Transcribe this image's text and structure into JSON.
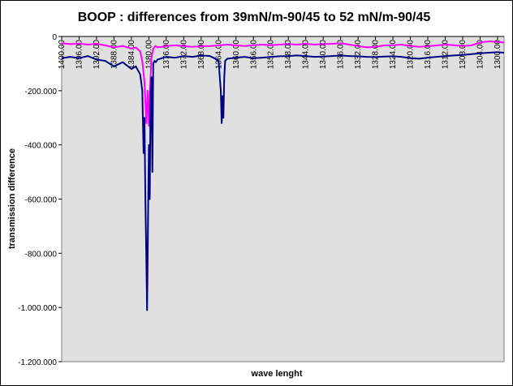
{
  "chart_data": {
    "type": "line",
    "title": "BOOP : differences from 39mN/m-90/45 to 52 mN/m-90/45",
    "xlabel": "wave lenght",
    "ylabel": "transmission difference",
    "ylim": [
      -1200,
      0
    ],
    "y_ticks": [
      {
        "value": 0,
        "label": "0"
      },
      {
        "value": -200,
        "label": "-200.000"
      },
      {
        "value": -400,
        "label": "-400.000"
      },
      {
        "value": -600,
        "label": "-600.000"
      },
      {
        "value": -800,
        "label": "-800.000"
      },
      {
        "value": -1000,
        "label": "-1.000.000"
      },
      {
        "value": -1200,
        "label": "-1.200.000"
      }
    ],
    "x_reversed": true,
    "xlim": [
      1400,
      1298.5
    ],
    "x_tick_labels": [
      "1400.00",
      "1396.00",
      "1392.00",
      "1388.00",
      "1384.00",
      "1380.00",
      "1376.00",
      "1372.00",
      "1368.00",
      "1364.00",
      "1360.00",
      "1356.00",
      "1352.00",
      "1348.00",
      "1344.00",
      "1340.00",
      "1336.00",
      "1332.00",
      "1328.00",
      "1324.00",
      "1320.00",
      "1316.00",
      "1312.00",
      "1308.00",
      "1304.00",
      "1300.00"
    ],
    "x_tick_values": [
      1400,
      1396,
      1392,
      1388,
      1384,
      1380,
      1376,
      1372,
      1368,
      1364,
      1360,
      1356,
      1352,
      1348,
      1344,
      1340,
      1336,
      1332,
      1328,
      1324,
      1320,
      1316,
      1312,
      1308,
      1304,
      1300
    ],
    "grid": false,
    "legend": "none",
    "plot_background": "#e0e0e0",
    "series": [
      {
        "color": "#ff00ff",
        "x": [
          1400,
          1398,
          1396,
          1394,
          1392,
          1390,
          1388,
          1386,
          1384,
          1383,
          1382,
          1381.5,
          1381,
          1380.6,
          1380.3,
          1380,
          1379.7,
          1379.4,
          1379,
          1378.5,
          1378,
          1377,
          1376,
          1374,
          1372,
          1370,
          1368,
          1366,
          1364,
          1362,
          1360,
          1358,
          1356,
          1354,
          1352,
          1350,
          1348,
          1346,
          1344,
          1342,
          1340,
          1338,
          1336,
          1334,
          1332,
          1330,
          1328,
          1326,
          1324,
          1322,
          1320,
          1318,
          1316,
          1314,
          1312,
          1310,
          1308,
          1306,
          1304,
          1302,
          1300,
          1298.5
        ],
        "y": [
          -25,
          -28,
          -26,
          -30,
          -27,
          -33,
          -40,
          -35,
          -45,
          -40,
          -55,
          -90,
          -170,
          -320,
          -200,
          -330,
          -180,
          -80,
          -45,
          -35,
          -40,
          -38,
          -35,
          -33,
          -35,
          -38,
          -36,
          -35,
          -33,
          -30,
          -33,
          -35,
          -32,
          -30,
          -32,
          -30,
          -28,
          -30,
          -27,
          -30,
          -28,
          -27,
          -25,
          -30,
          -35,
          -40,
          -38,
          -33,
          -32,
          -30,
          -35,
          -38,
          -36,
          -33,
          -30,
          -32,
          -35,
          -33,
          -22,
          -18,
          -20,
          -22
        ]
      },
      {
        "color": "#000080",
        "x": [
          1400,
          1398,
          1396,
          1394,
          1392,
          1390,
          1388,
          1386,
          1384,
          1383,
          1382,
          1381.5,
          1381.2,
          1381,
          1380.8,
          1380.6,
          1380.4,
          1380.2,
          1380,
          1379.8,
          1379.6,
          1379.4,
          1379.2,
          1379,
          1378.7,
          1378.4,
          1378,
          1377,
          1376,
          1374,
          1372,
          1370,
          1368,
          1366,
          1365,
          1364,
          1363.5,
          1363.3,
          1363.1,
          1362.9,
          1362.7,
          1362.5,
          1362.2,
          1362,
          1361,
          1360,
          1358,
          1356,
          1354,
          1352,
          1350,
          1348,
          1346,
          1344,
          1342,
          1340,
          1338,
          1336,
          1334,
          1332,
          1330,
          1328,
          1326,
          1324,
          1322,
          1320,
          1318,
          1316,
          1314,
          1312,
          1310,
          1308,
          1306,
          1304,
          1302,
          1300,
          1298.5
        ],
        "y": [
          -80,
          -75,
          -80,
          -72,
          -85,
          -90,
          -110,
          -95,
          -120,
          -110,
          -140,
          -200,
          -430,
          -300,
          -600,
          -800,
          -1010,
          -700,
          -400,
          -600,
          -200,
          -150,
          -500,
          -100,
          -90,
          -95,
          -85,
          -80,
          -75,
          -78,
          -72,
          -75,
          -70,
          -72,
          -80,
          -90,
          -200,
          -320,
          -220,
          -300,
          -150,
          -90,
          -85,
          -82,
          -80,
          -78,
          -75,
          -80,
          -78,
          -75,
          -73,
          -72,
          -70,
          -72,
          -75,
          -74,
          -72,
          -70,
          -72,
          -73,
          -75,
          -76,
          -74,
          -73,
          -75,
          -80,
          -82,
          -78,
          -75,
          -72,
          -70,
          -68,
          -65,
          -62,
          -60,
          -58,
          -60
        ]
      }
    ]
  }
}
